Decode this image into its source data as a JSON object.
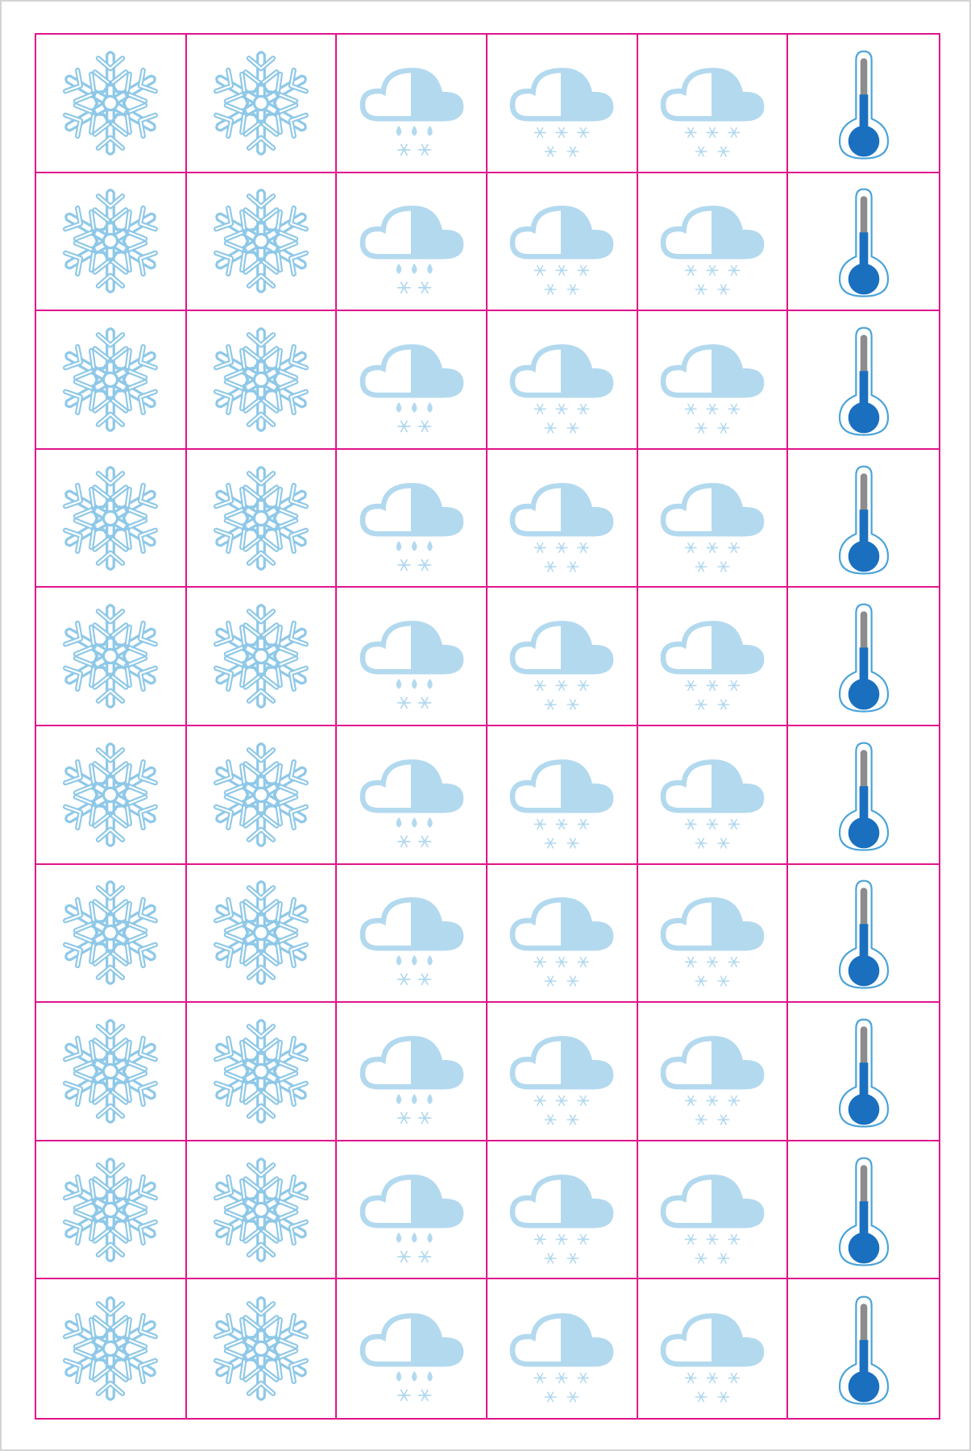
{
  "colors": {
    "border": "#e0148c",
    "icon_light": "#b3d9ef",
    "icon_outline": "#8ec8e8",
    "thermo_fill": "#1a6fbf",
    "thermo_tube": "#8c8c8c"
  },
  "columns": [
    {
      "icon": "snowflake-icon"
    },
    {
      "icon": "snowflake-icon"
    },
    {
      "icon": "rain-and-snow-cloud-icon"
    },
    {
      "icon": "heavy-snow-cloud-icon"
    },
    {
      "icon": "heavy-snow-cloud-icon"
    },
    {
      "icon": "thermometer-icon"
    }
  ],
  "row_count": 10
}
